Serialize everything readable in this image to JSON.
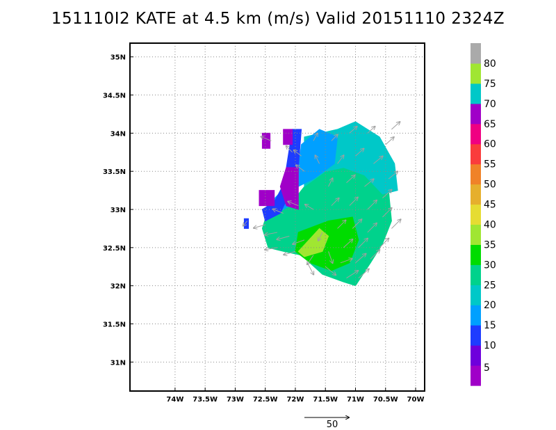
{
  "title": "151110I2 KATE at 4.5 km (m/s) Valid 20151110 2324Z",
  "axes": {
    "lon_range": [
      -74.75,
      -69.85
    ],
    "lat_range": [
      30.62,
      35.18
    ],
    "lon_ticks": [
      -74,
      -73.5,
      -73,
      -72.5,
      -72,
      -71.5,
      -71,
      -70.5,
      -70
    ],
    "lon_labels": [
      "74W",
      "73.5W",
      "73W",
      "72.5W",
      "72W",
      "71.5W",
      "71W",
      "70.5W",
      "70W"
    ],
    "lat_ticks": [
      31,
      31.5,
      32,
      32.5,
      33,
      33.5,
      34,
      34.5,
      35
    ],
    "lat_labels": [
      "31N",
      "31.5N",
      "32N",
      "32.5N",
      "33N",
      "33.5N",
      "34N",
      "34.5N",
      "35N"
    ],
    "grid": "dotted"
  },
  "colorbar": {
    "labels": [
      "5",
      "10",
      "15",
      "20",
      "25",
      "30",
      "35",
      "40",
      "45",
      "50",
      "55",
      "60",
      "65",
      "70",
      "75",
      "80"
    ],
    "colors": [
      "#a000c8",
      "#6e00dc",
      "#1e3cff",
      "#00a0ff",
      "#00c8c8",
      "#00d28c",
      "#00dc00",
      "#a0e632",
      "#e6dc32",
      "#e6af2d",
      "#f08228",
      "#fa3c3c",
      "#f00082",
      "#a000c8",
      "#00c8c8",
      "#a0e632",
      "#aaaaaa"
    ]
  },
  "reference_vector": {
    "label": "50"
  },
  "chart_data": {
    "type": "heatmap",
    "title": "151110I2 KATE at 4.5 km (m/s) Valid 20151110 2324Z",
    "variable": "wind speed (m/s) at 4.5 km with wind vectors",
    "x_axis": "longitude",
    "y_axis": "latitude",
    "regions": [
      {
        "level": "25",
        "color": "#00d28c",
        "polygon": [
          [
            -71.85,
            33.3
          ],
          [
            -71.5,
            33.5
          ],
          [
            -71.2,
            33.6
          ],
          [
            -70.8,
            33.6
          ],
          [
            -70.45,
            33.25
          ],
          [
            -70.4,
            32.85
          ],
          [
            -70.55,
            32.55
          ],
          [
            -70.75,
            32.3
          ],
          [
            -71,
            32
          ],
          [
            -71.2,
            32.05
          ],
          [
            -71.55,
            32.15
          ],
          [
            -71.9,
            32.4
          ],
          [
            -72.2,
            32.45
          ],
          [
            -72.45,
            32.5
          ],
          [
            -72.55,
            32.75
          ],
          [
            -72.45,
            33
          ],
          [
            -72.2,
            33.05
          ],
          [
            -72,
            33.15
          ]
        ]
      },
      {
        "level": "20",
        "color": "#00c8c8",
        "polygon": [
          [
            -71.85,
            33.95
          ],
          [
            -71.3,
            34.05
          ],
          [
            -71,
            34.15
          ],
          [
            -70.6,
            33.95
          ],
          [
            -70.35,
            33.6
          ],
          [
            -70.3,
            33.25
          ],
          [
            -70.55,
            33.2
          ],
          [
            -70.85,
            33.45
          ],
          [
            -71.2,
            33.55
          ],
          [
            -71.5,
            33.5
          ],
          [
            -71.85,
            33.3
          ]
        ]
      },
      {
        "level": "15",
        "color": "#00a0ff",
        "polygon": [
          [
            -71.9,
            33.85
          ],
          [
            -71.6,
            34.05
          ],
          [
            -71.3,
            33.95
          ],
          [
            -71.35,
            33.6
          ],
          [
            -71.7,
            33.4
          ],
          [
            -71.95,
            33.3
          ],
          [
            -72.1,
            33.05
          ],
          [
            -72.3,
            32.95
          ],
          [
            -72.4,
            33.1
          ],
          [
            -72.1,
            33.35
          ],
          [
            -71.95,
            33.55
          ]
        ]
      },
      {
        "level": "30",
        "color": "#00dc00",
        "polygon": [
          [
            -71.95,
            32.7
          ],
          [
            -71.45,
            32.85
          ],
          [
            -71.05,
            32.9
          ],
          [
            -70.95,
            32.6
          ],
          [
            -71.1,
            32.3
          ],
          [
            -71.4,
            32.2
          ],
          [
            -71.75,
            32.3
          ],
          [
            -72,
            32.45
          ]
        ]
      },
      {
        "level": "35",
        "color": "#a0e632",
        "polygon": [
          [
            -71.95,
            32.45
          ],
          [
            -71.6,
            32.75
          ],
          [
            -71.45,
            32.65
          ],
          [
            -71.55,
            32.45
          ],
          [
            -71.85,
            32.38
          ]
        ]
      },
      {
        "level": "10",
        "color": "#1e3cff",
        "polygon": [
          [
            -72.05,
            34.05
          ],
          [
            -71.9,
            34.05
          ],
          [
            -71.95,
            33.55
          ],
          [
            -72.15,
            33.4
          ],
          [
            -72.35,
            33.1
          ],
          [
            -72.55,
            33.0
          ],
          [
            -72.5,
            32.85
          ],
          [
            -72.25,
            32.95
          ],
          [
            -72.1,
            33.2
          ],
          [
            -72.05,
            33.45
          ],
          [
            -72.15,
            33.55
          ],
          [
            -72.1,
            33.8
          ]
        ]
      },
      {
        "level": "10",
        "color": "#1e3cff",
        "polygon": [
          [
            -72.85,
            32.88
          ],
          [
            -72.78,
            32.88
          ],
          [
            -72.78,
            32.75
          ],
          [
            -72.85,
            32.75
          ]
        ]
      },
      {
        "level": "5",
        "color": "#a000c8",
        "polygon": [
          [
            -72.2,
            34.05
          ],
          [
            -72.05,
            34.05
          ],
          [
            -72.05,
            33.85
          ],
          [
            -72.2,
            33.85
          ]
        ]
      },
      {
        "level": "5",
        "color": "#a000c8",
        "polygon": [
          [
            -72.15,
            33.55
          ],
          [
            -71.95,
            33.55
          ],
          [
            -71.95,
            33.0
          ],
          [
            -72.15,
            33.05
          ],
          [
            -72.25,
            33.3
          ]
        ]
      },
      {
        "level": "5",
        "color": "#a000c8",
        "polygon": [
          [
            -72.6,
            33.25
          ],
          [
            -72.35,
            33.25
          ],
          [
            -72.35,
            33.05
          ],
          [
            -72.6,
            33.05
          ]
        ]
      },
      {
        "level": "5",
        "color": "#a000c8",
        "polygon": [
          [
            -72.55,
            34.0
          ],
          [
            -72.42,
            34.0
          ],
          [
            -72.42,
            33.8
          ],
          [
            -72.55,
            33.8
          ]
        ]
      }
    ],
    "vectors": [
      [
        -72.4,
        33.9,
        -25,
        10
      ],
      [
        -72.05,
        33.75,
        -15,
        15
      ],
      [
        -71.9,
        33.7,
        -18,
        14
      ],
      [
        -71.7,
        33.9,
        10,
        18
      ],
      [
        -71.4,
        33.9,
        15,
        15
      ],
      [
        -71.1,
        34.0,
        18,
        16
      ],
      [
        -70.8,
        34.0,
        18,
        16
      ],
      [
        -70.5,
        33.85,
        20,
        18
      ],
      [
        -70.4,
        34.05,
        20,
        18
      ],
      [
        -71.85,
        33.5,
        -20,
        15
      ],
      [
        -71.6,
        33.6,
        -10,
        20
      ],
      [
        -71.3,
        33.6,
        15,
        20
      ],
      [
        -71.0,
        33.7,
        20,
        18
      ],
      [
        -70.7,
        33.6,
        22,
        18
      ],
      [
        -70.45,
        33.4,
        22,
        18
      ],
      [
        -70.55,
        33.15,
        22,
        20
      ],
      [
        -70.85,
        33.3,
        22,
        18
      ],
      [
        -71.15,
        33.35,
        20,
        18
      ],
      [
        -71.45,
        33.3,
        10,
        20
      ],
      [
        -72.2,
        32.95,
        -25,
        10
      ],
      [
        -71.95,
        33.05,
        -25,
        10
      ],
      [
        -71.7,
        33.0,
        -20,
        12
      ],
      [
        -71.4,
        33.05,
        18,
        18
      ],
      [
        -71.1,
        33.05,
        20,
        20
      ],
      [
        -70.8,
        33.0,
        22,
        22
      ],
      [
        -70.55,
        32.9,
        22,
        22
      ],
      [
        -70.4,
        32.75,
        22,
        22
      ],
      [
        -72.5,
        32.8,
        -28,
        -8
      ],
      [
        -72.3,
        32.7,
        -30,
        -6
      ],
      [
        -72.1,
        32.65,
        -30,
        -8
      ],
      [
        -71.85,
        32.6,
        -28,
        -10
      ],
      [
        -71.55,
        32.7,
        -10,
        -20
      ],
      [
        -71.3,
        32.75,
        20,
        20
      ],
      [
        -71.05,
        32.75,
        22,
        22
      ],
      [
        -70.8,
        32.7,
        22,
        22
      ],
      [
        -70.6,
        32.5,
        22,
        22
      ],
      [
        -72.3,
        32.5,
        -30,
        -5
      ],
      [
        -72.0,
        32.45,
        -28,
        -8
      ],
      [
        -71.7,
        32.4,
        -15,
        -22
      ],
      [
        -71.45,
        32.45,
        10,
        -28
      ],
      [
        -71.2,
        32.5,
        22,
        20
      ],
      [
        -70.95,
        32.5,
        22,
        22
      ],
      [
        -70.75,
        32.35,
        22,
        22
      ],
      [
        -71.8,
        32.3,
        15,
        -28
      ],
      [
        -71.5,
        32.25,
        25,
        -20
      ],
      [
        -71.25,
        32.3,
        28,
        10
      ],
      [
        -71.0,
        32.3,
        25,
        22
      ],
      [
        -71.15,
        32.1,
        28,
        18
      ],
      [
        -70.95,
        32.1,
        25,
        22
      ],
      [
        -72.8,
        32.85,
        -10,
        -12
      ]
    ]
  }
}
